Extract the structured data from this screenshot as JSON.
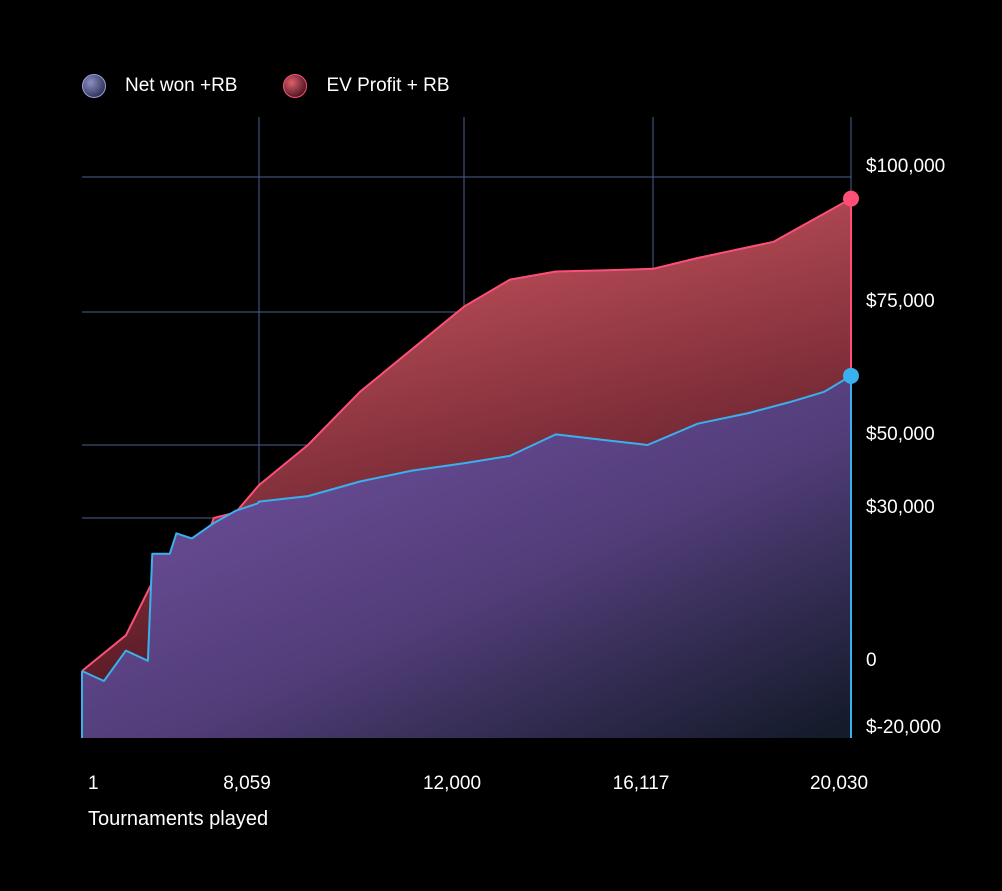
{
  "chart_data": {
    "type": "area",
    "legend_position": "top-left",
    "grid": true,
    "series": [
      {
        "name": "Net won +RB",
        "color": "#3ab0ee",
        "fill_top": "#6e4f9c",
        "fill_bottom": "#141b2b",
        "x": [
          1,
          1000,
          2000,
          3000,
          3200,
          4000,
          4300,
          5000,
          6000,
          7000,
          8000,
          8059,
          9000,
          10000,
          11000,
          12000,
          13000,
          14000,
          15000,
          16000,
          17000,
          18000,
          18800,
          19500,
          20030
        ],
        "y": [
          0,
          -3000,
          4000,
          2000,
          23000,
          23000,
          27000,
          26000,
          29000,
          32000,
          34000,
          34500,
          36000,
          40000,
          43000,
          45000,
          47000,
          52000,
          51000,
          50000,
          54000,
          56000,
          58000,
          60000,
          63000
        ]
      },
      {
        "name": "EV Profit + RB",
        "color": "#ff4f78",
        "fill_top": "#e0606a",
        "fill_bottom": "#3b0c18",
        "x": [
          1,
          2000,
          3500,
          4500,
          5500,
          6000,
          7000,
          8059,
          9000,
          10000,
          11000,
          12000,
          13000,
          14000,
          15000,
          16117,
          17000,
          18500,
          20030
        ],
        "y": [
          0,
          7000,
          20000,
          24000,
          24000,
          30000,
          31500,
          39000,
          50000,
          60000,
          68000,
          76000,
          81000,
          82500,
          82700,
          83000,
          85000,
          88000,
          96000
        ]
      }
    ],
    "xlabel": "Tournaments played",
    "x_ticks": [
      {
        "label": "1",
        "value": 1
      },
      {
        "label": "8,059",
        "value": 8059
      },
      {
        "label": "12,000",
        "value": 12000
      },
      {
        "label": "16,117",
        "value": 16117
      },
      {
        "label": "20,030",
        "value": 20030
      }
    ],
    "y_ticks": [
      {
        "label": "$100,000",
        "value": 100000
      },
      {
        "label": "$75,000",
        "value": 75000
      },
      {
        "label": "$50,000",
        "value": 50000
      },
      {
        "label": "$30,000",
        "value": 30000
      },
      {
        "label": "0",
        "value": 0
      },
      {
        "label": "$-20,000",
        "value": -20000
      }
    ],
    "xlim": [
      1,
      20030
    ],
    "ylim": [
      -20000,
      100000
    ]
  }
}
